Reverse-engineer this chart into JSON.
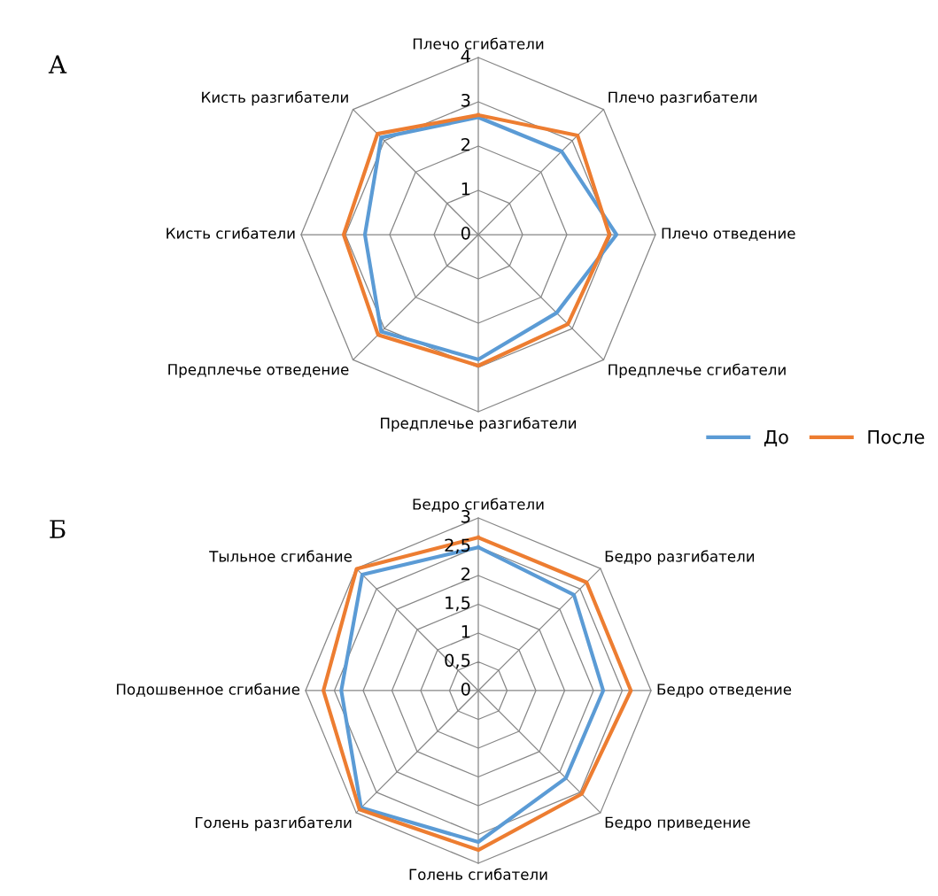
{
  "chart_data": [
    {
      "type": "radar",
      "categories": [
        "Плечо сгибатели",
        "Плечо разгибатели",
        "Плечо отведение",
        "Предплечье сгибатели",
        "Предплечье разгибатели",
        "Предплечье отведение",
        "Кисть сгибатели",
        "Кисть разгибатели"
      ],
      "series": [
        {
          "name": "До",
          "color": "#5b9bd5",
          "values": [
            2.65,
            2.66,
            3.12,
            2.5,
            2.82,
            3.1,
            2.56,
            3.1
          ]
        },
        {
          "name": "После",
          "color": "#ed7d31",
          "values": [
            2.7,
            3.17,
            2.96,
            2.86,
            2.96,
            3.2,
            3.04,
            3.22
          ]
        }
      ],
      "ylim": [
        0,
        4
      ],
      "yticks": [
        0,
        1,
        2,
        3,
        4
      ],
      "grid": true,
      "legend": "bottom right",
      "annotations": [
        "А"
      ]
    },
    {
      "type": "radar",
      "categories": [
        "Бедро сгибатели",
        "Бедро разгибатели",
        "Бедро отведение",
        "Бедро приведение",
        "Голень сгибатели",
        "Голень разгибатели",
        "Подошвенное сгибание",
        "Тыльное сгибание"
      ],
      "series": [
        {
          "color": "#5b9bd5",
          "values": [
            2.49,
            2.35,
            2.17,
            2.15,
            2.63,
            2.88,
            2.38,
            2.85
          ]
        },
        {
          "color": "#ed7d31",
          "values": [
            2.66,
            2.66,
            2.65,
            2.54,
            2.77,
            2.92,
            2.69,
            2.99
          ]
        }
      ],
      "ylim": [
        0,
        3
      ],
      "yticks": [
        0,
        {
          "value": 0.5,
          "label": "0,5"
        },
        1,
        {
          "value": 1.5,
          "label": "1,5"
        },
        2,
        {
          "value": 2.5,
          "label": "2,5"
        },
        3
      ],
      "grid": true,
      "annotations": [
        "Б"
      ]
    }
  ]
}
